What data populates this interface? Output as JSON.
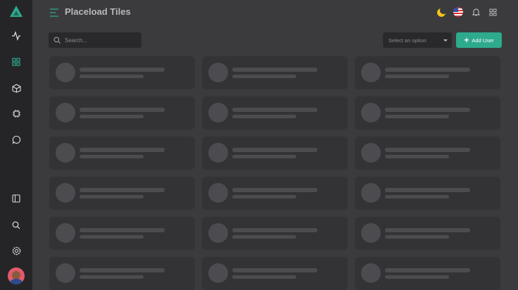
{
  "header": {
    "title": "Placeload Tiles"
  },
  "toolbar": {
    "search_placeholder": "Search...",
    "select_value": "Select an option",
    "add_label": "Add User"
  },
  "sidebar": {
    "items": [
      "activity-icon",
      "grid-icon",
      "box-icon",
      "cpu-icon",
      "message-icon",
      "sidebar-panel-icon",
      "search-icon",
      "settings-icon"
    ]
  },
  "colors": {
    "accent": "#2eaa8c",
    "moon": "#f5c518"
  },
  "tiles_count": 18
}
